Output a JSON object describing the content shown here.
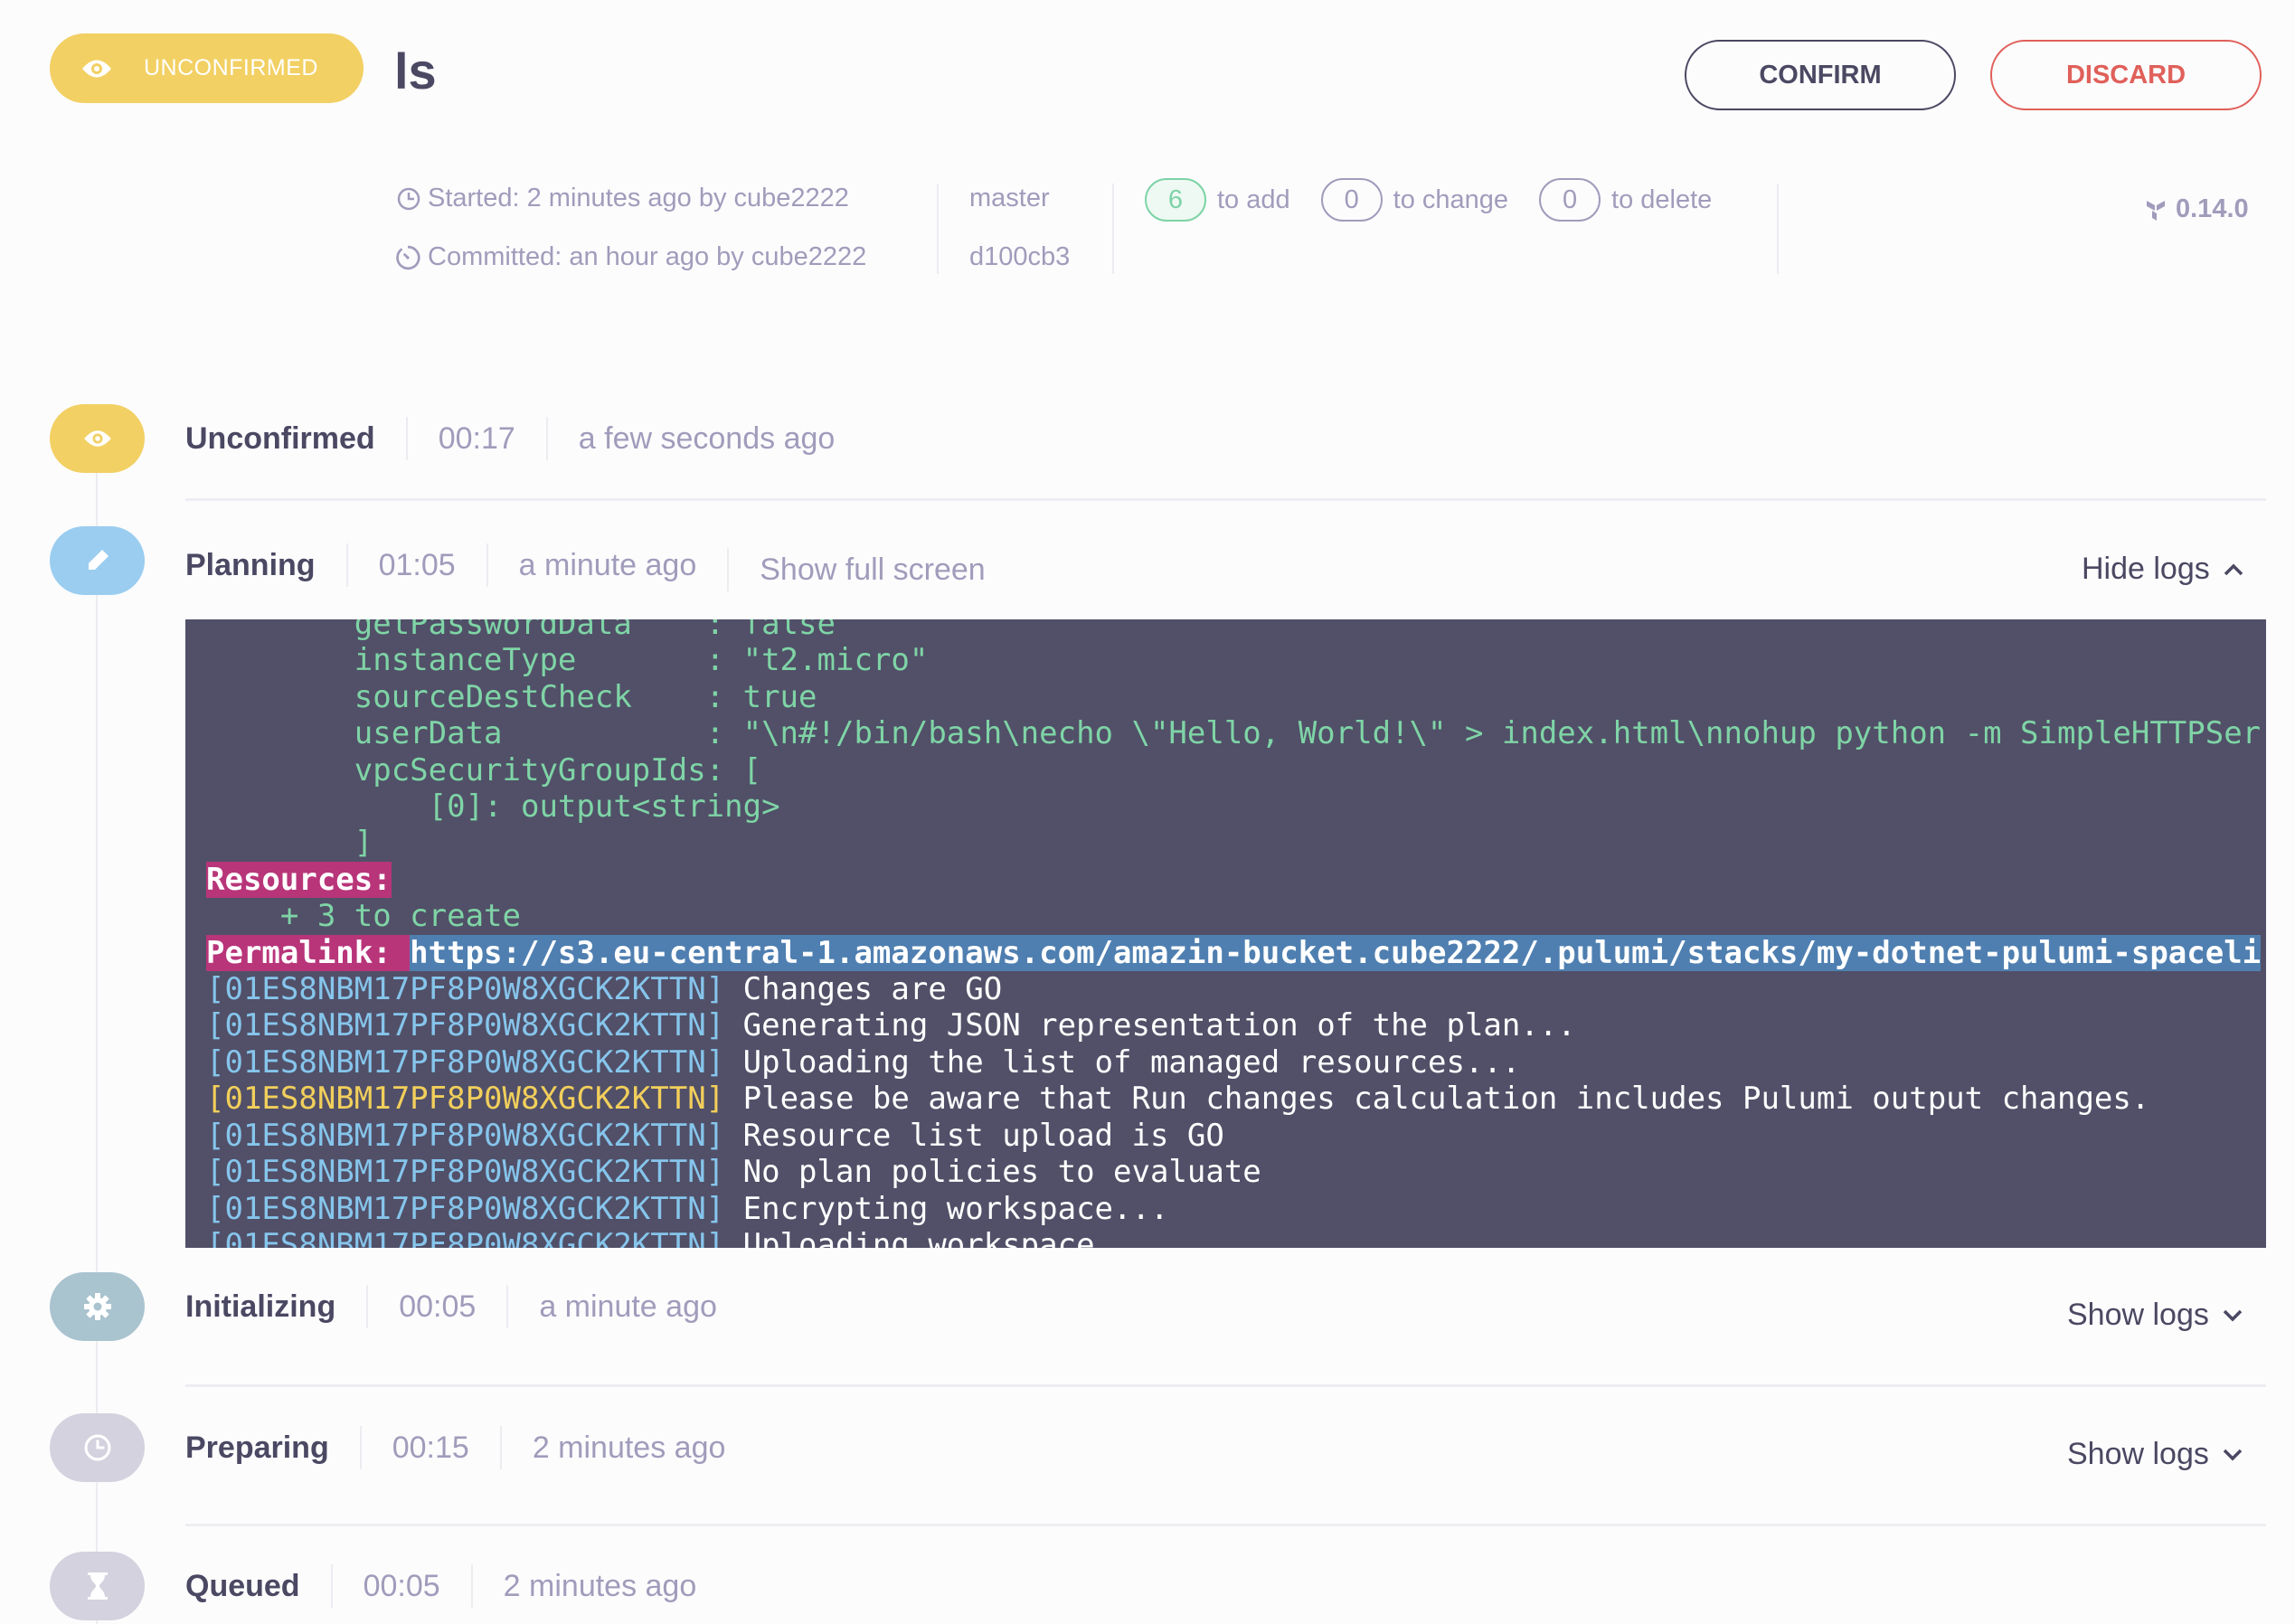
{
  "header": {
    "status_badge": "UNCONFIRMED",
    "title": "ls",
    "confirm_label": "CONFIRM",
    "discard_label": "DISCARD"
  },
  "meta": {
    "started": "Started: 2 minutes ago by cube2222",
    "committed": "Committed: an hour ago by cube2222",
    "branch": "master",
    "commit": "d100cb3",
    "to_add_count": "6",
    "to_add_label": "to add",
    "to_change_count": "0",
    "to_change_label": "to change",
    "to_delete_count": "0",
    "to_delete_label": "to delete",
    "version": "0.14.0"
  },
  "stages": [
    {
      "name": "Unconfirmed",
      "duration": "00:17",
      "ago": "a few seconds ago",
      "icon": "eye-icon",
      "color": "#f2d063"
    },
    {
      "name": "Planning",
      "duration": "01:05",
      "ago": "a minute ago",
      "full_screen": "Show full screen",
      "toggle": "Hide logs",
      "icon": "pencil-icon",
      "color": "#9acdf0"
    },
    {
      "name": "Initializing",
      "duration": "00:05",
      "ago": "a minute ago",
      "toggle": "Show logs",
      "icon": "gear-icon",
      "color": "#a9c3cf"
    },
    {
      "name": "Preparing",
      "duration": "00:15",
      "ago": "2 minutes ago",
      "toggle": "Show logs",
      "icon": "clock-icon",
      "color": "#d3d2de"
    },
    {
      "name": "Queued",
      "duration": "00:05",
      "ago": "2 minutes ago",
      "icon": "hourglass-icon",
      "color": "#d3d2de"
    }
  ],
  "log": {
    "plain": [
      "        getPasswordData    : false",
      "        instanceType       : \"t2.micro\"",
      "        sourceDestCheck    : true",
      "        userData           : \"\\n#!/bin/bash\\necho \\\"Hello, World!\\\" > index.html\\nnohup python -m SimpleHTTPSer",
      "        vpcSecurityGroupIds: [",
      "            [0]: output<string>",
      "        ]"
    ],
    "resources_label": "Resources:",
    "to_create": "    + 3 to create",
    "permalink_label": "Permalink: ",
    "permalink_url": "https://s3.eu-central-1.amazonaws.com/amazin-bucket.cube2222/.pulumi/stacks/my-dotnet-pulumi-spaceli",
    "run_id": "[01ES8NBM17PF8P0W8XGCK2KTTN]",
    "messages": [
      " Changes are GO",
      " Generating JSON representation of the plan...",
      " Uploading the list of managed resources...",
      " Please be aware that Run changes calculation includes Pulumi output changes.",
      " Resource list upload is GO",
      " No plan policies to evaluate",
      " Encrypting workspace...",
      " Uploading workspace..."
    ],
    "colors": {
      "text": "#7fd4a6",
      "id": "#86c5ec",
      "warning_id": "#f2cf5b",
      "highlight": "#b8357a",
      "link": "#4f7fb0",
      "background": "#515068"
    }
  }
}
